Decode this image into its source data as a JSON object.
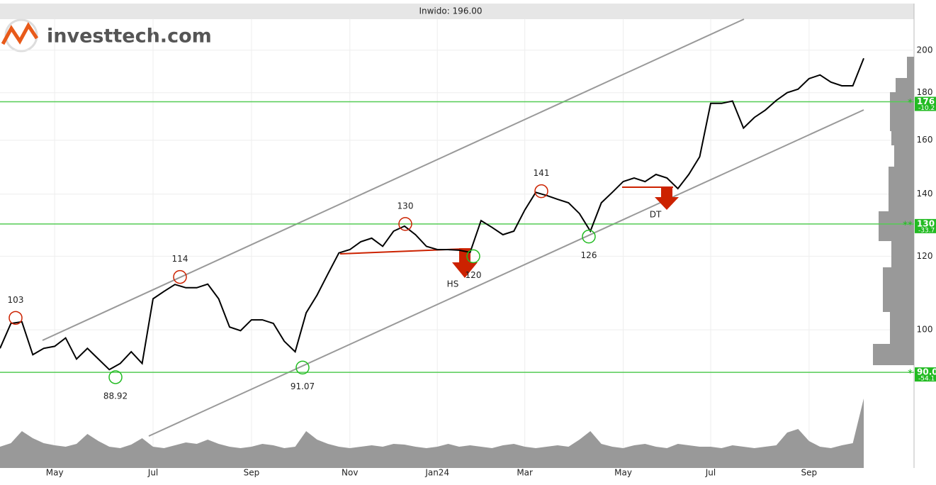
{
  "chart_data": {
    "type": "line",
    "title": "Inwido: 196.00",
    "logo": "investtech.com",
    "yscale": "log",
    "ylim": [
      71,
      216
    ],
    "yticks": [
      100,
      120,
      140,
      160,
      180,
      200
    ],
    "grid": true,
    "categories": [
      null,
      null,
      null,
      null,
      null,
      "May",
      null,
      null,
      null,
      null,
      null,
      null,
      null,
      null,
      "Jul",
      null,
      null,
      null,
      null,
      null,
      null,
      null,
      null,
      "Sep",
      null,
      null,
      null,
      null,
      null,
      null,
      null,
      null,
      "Nov",
      null,
      null,
      null,
      null,
      null,
      null,
      null,
      "Jan24",
      null,
      null,
      null,
      null,
      null,
      null,
      null,
      "Mar",
      null,
      null,
      null,
      null,
      null,
      null,
      null,
      null,
      "May",
      null,
      null,
      null,
      null,
      null,
      null,
      null,
      "Jul",
      null,
      null,
      null,
      null,
      null,
      null,
      null,
      null,
      "Sep",
      null,
      null,
      null,
      null,
      null
    ],
    "series": [
      {
        "name": "Inwido",
        "color": "#000000",
        "values": [
          95.5,
          101.6,
          102,
          94,
          95.5,
          96,
          98,
          93,
          95.5,
          93,
          90.6,
          92,
          94.7,
          92,
          108,
          110,
          111.9,
          111,
          111,
          112,
          108,
          100.7,
          99.8,
          102.5,
          102.5,
          101.6,
          97.2,
          94.7,
          104.3,
          109,
          114.9,
          121,
          122,
          124.4,
          125.5,
          123,
          127.7,
          129.3,
          126.6,
          123,
          122,
          122,
          121.8,
          121.2,
          131.1,
          128.9,
          126.6,
          127.7,
          134.6,
          140.6,
          139.5,
          138.2,
          137,
          133.4,
          127.7,
          137,
          140.6,
          144.4,
          145.7,
          144.4,
          147,
          145.7,
          141.9,
          147,
          153.6,
          175.3,
          175.3,
          176.3,
          164.9,
          169.3,
          172.4,
          176.6,
          180,
          181.6,
          186.4,
          188.1,
          184.8,
          183.1,
          183.1,
          196
        ]
      }
    ],
    "volume": [
      30,
      35,
      52,
      42,
      35,
      32,
      30,
      34,
      48,
      38,
      30,
      28,
      33,
      42,
      30,
      28,
      32,
      36,
      34,
      40,
      34,
      30,
      28,
      30,
      34,
      32,
      28,
      30,
      52,
      40,
      34,
      30,
      28,
      30,
      32,
      30,
      34,
      33,
      30,
      28,
      30,
      34,
      30,
      32,
      30,
      28,
      32,
      34,
      30,
      28,
      30,
      32,
      30,
      40,
      52,
      34,
      30,
      28,
      32,
      34,
      30,
      28,
      34,
      32,
      30,
      30,
      28,
      32,
      30,
      28,
      30,
      32,
      50,
      55,
      38,
      30,
      28,
      32,
      35,
      98
    ],
    "tops": [
      103,
      114,
      130,
      141
    ],
    "bottoms": [
      88.92,
      91.07,
      120,
      126
    ],
    "patterns": [
      "HS",
      "DT"
    ],
    "levels": [
      {
        "value": 176,
        "label": "176",
        "change": "-10.2",
        "mark": "*"
      },
      {
        "value": 130,
        "label": "130",
        "change": "-33.7",
        "mark": "**"
      },
      {
        "value": 90,
        "label": "90.0",
        "change": "-54.1",
        "mark": "*"
      }
    ]
  }
}
